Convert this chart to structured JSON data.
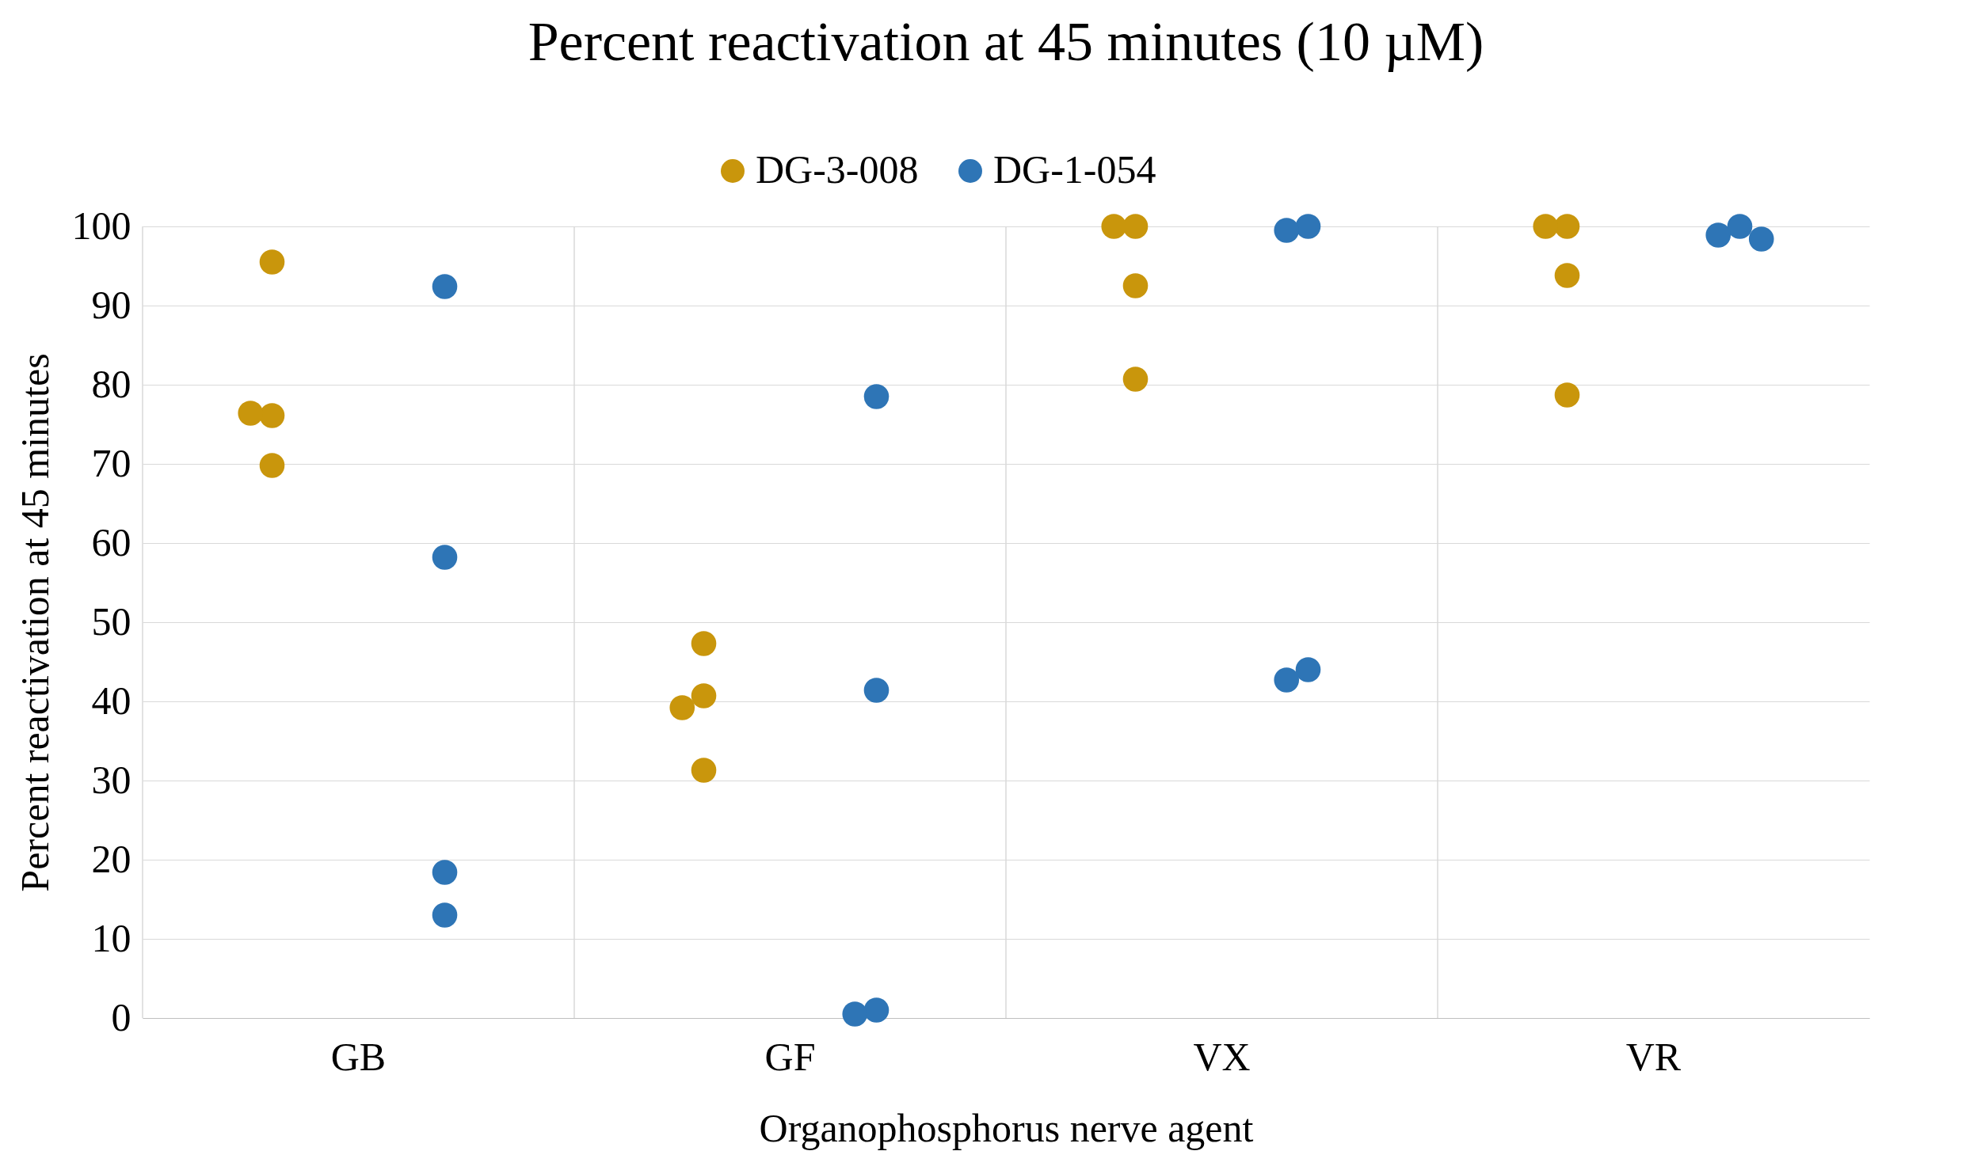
{
  "chart_data": {
    "type": "scatter",
    "title": "Percent reactivation at 45 minutes (10 µM)",
    "xlabel": "Organophosphorus nerve agent",
    "ylabel": "Percent reactivation at 45 minutes",
    "categories": [
      "GB",
      "GF",
      "VX",
      "VR"
    ],
    "ylim": [
      0,
      100
    ],
    "yticks": [
      0,
      10,
      20,
      30,
      40,
      50,
      60,
      70,
      80,
      90,
      100
    ],
    "series": [
      {
        "name": "DG-3-008",
        "color": "#c9960c",
        "x": [
          "GB",
          "GB",
          "GB",
          "GB",
          "GF",
          "GF",
          "GF",
          "GF",
          "VX",
          "VX",
          "VX",
          "VX",
          "VR",
          "VR",
          "VR",
          "VR"
        ],
        "values": [
          95.5,
          76.1,
          76.4,
          69.8,
          47.3,
          40.7,
          39.2,
          31.3,
          100,
          100,
          92.5,
          80.7,
          100,
          100,
          93.8,
          78.7
        ]
      },
      {
        "name": "DG-1-054",
        "color": "#2e75b6",
        "x": [
          "GB",
          "GB",
          "GB",
          "GB",
          "GF",
          "GF",
          "GF",
          "GF",
          "VX",
          "VX",
          "VX",
          "VX",
          "VR",
          "VR",
          "VR"
        ],
        "values": [
          92.4,
          58.2,
          18.4,
          13,
          78.5,
          41.4,
          1.0,
          0.5,
          100,
          99.5,
          44,
          42.7,
          100,
          98.9,
          98.4
        ]
      }
    ],
    "marker": "circle",
    "grid": true,
    "legend": "top"
  }
}
